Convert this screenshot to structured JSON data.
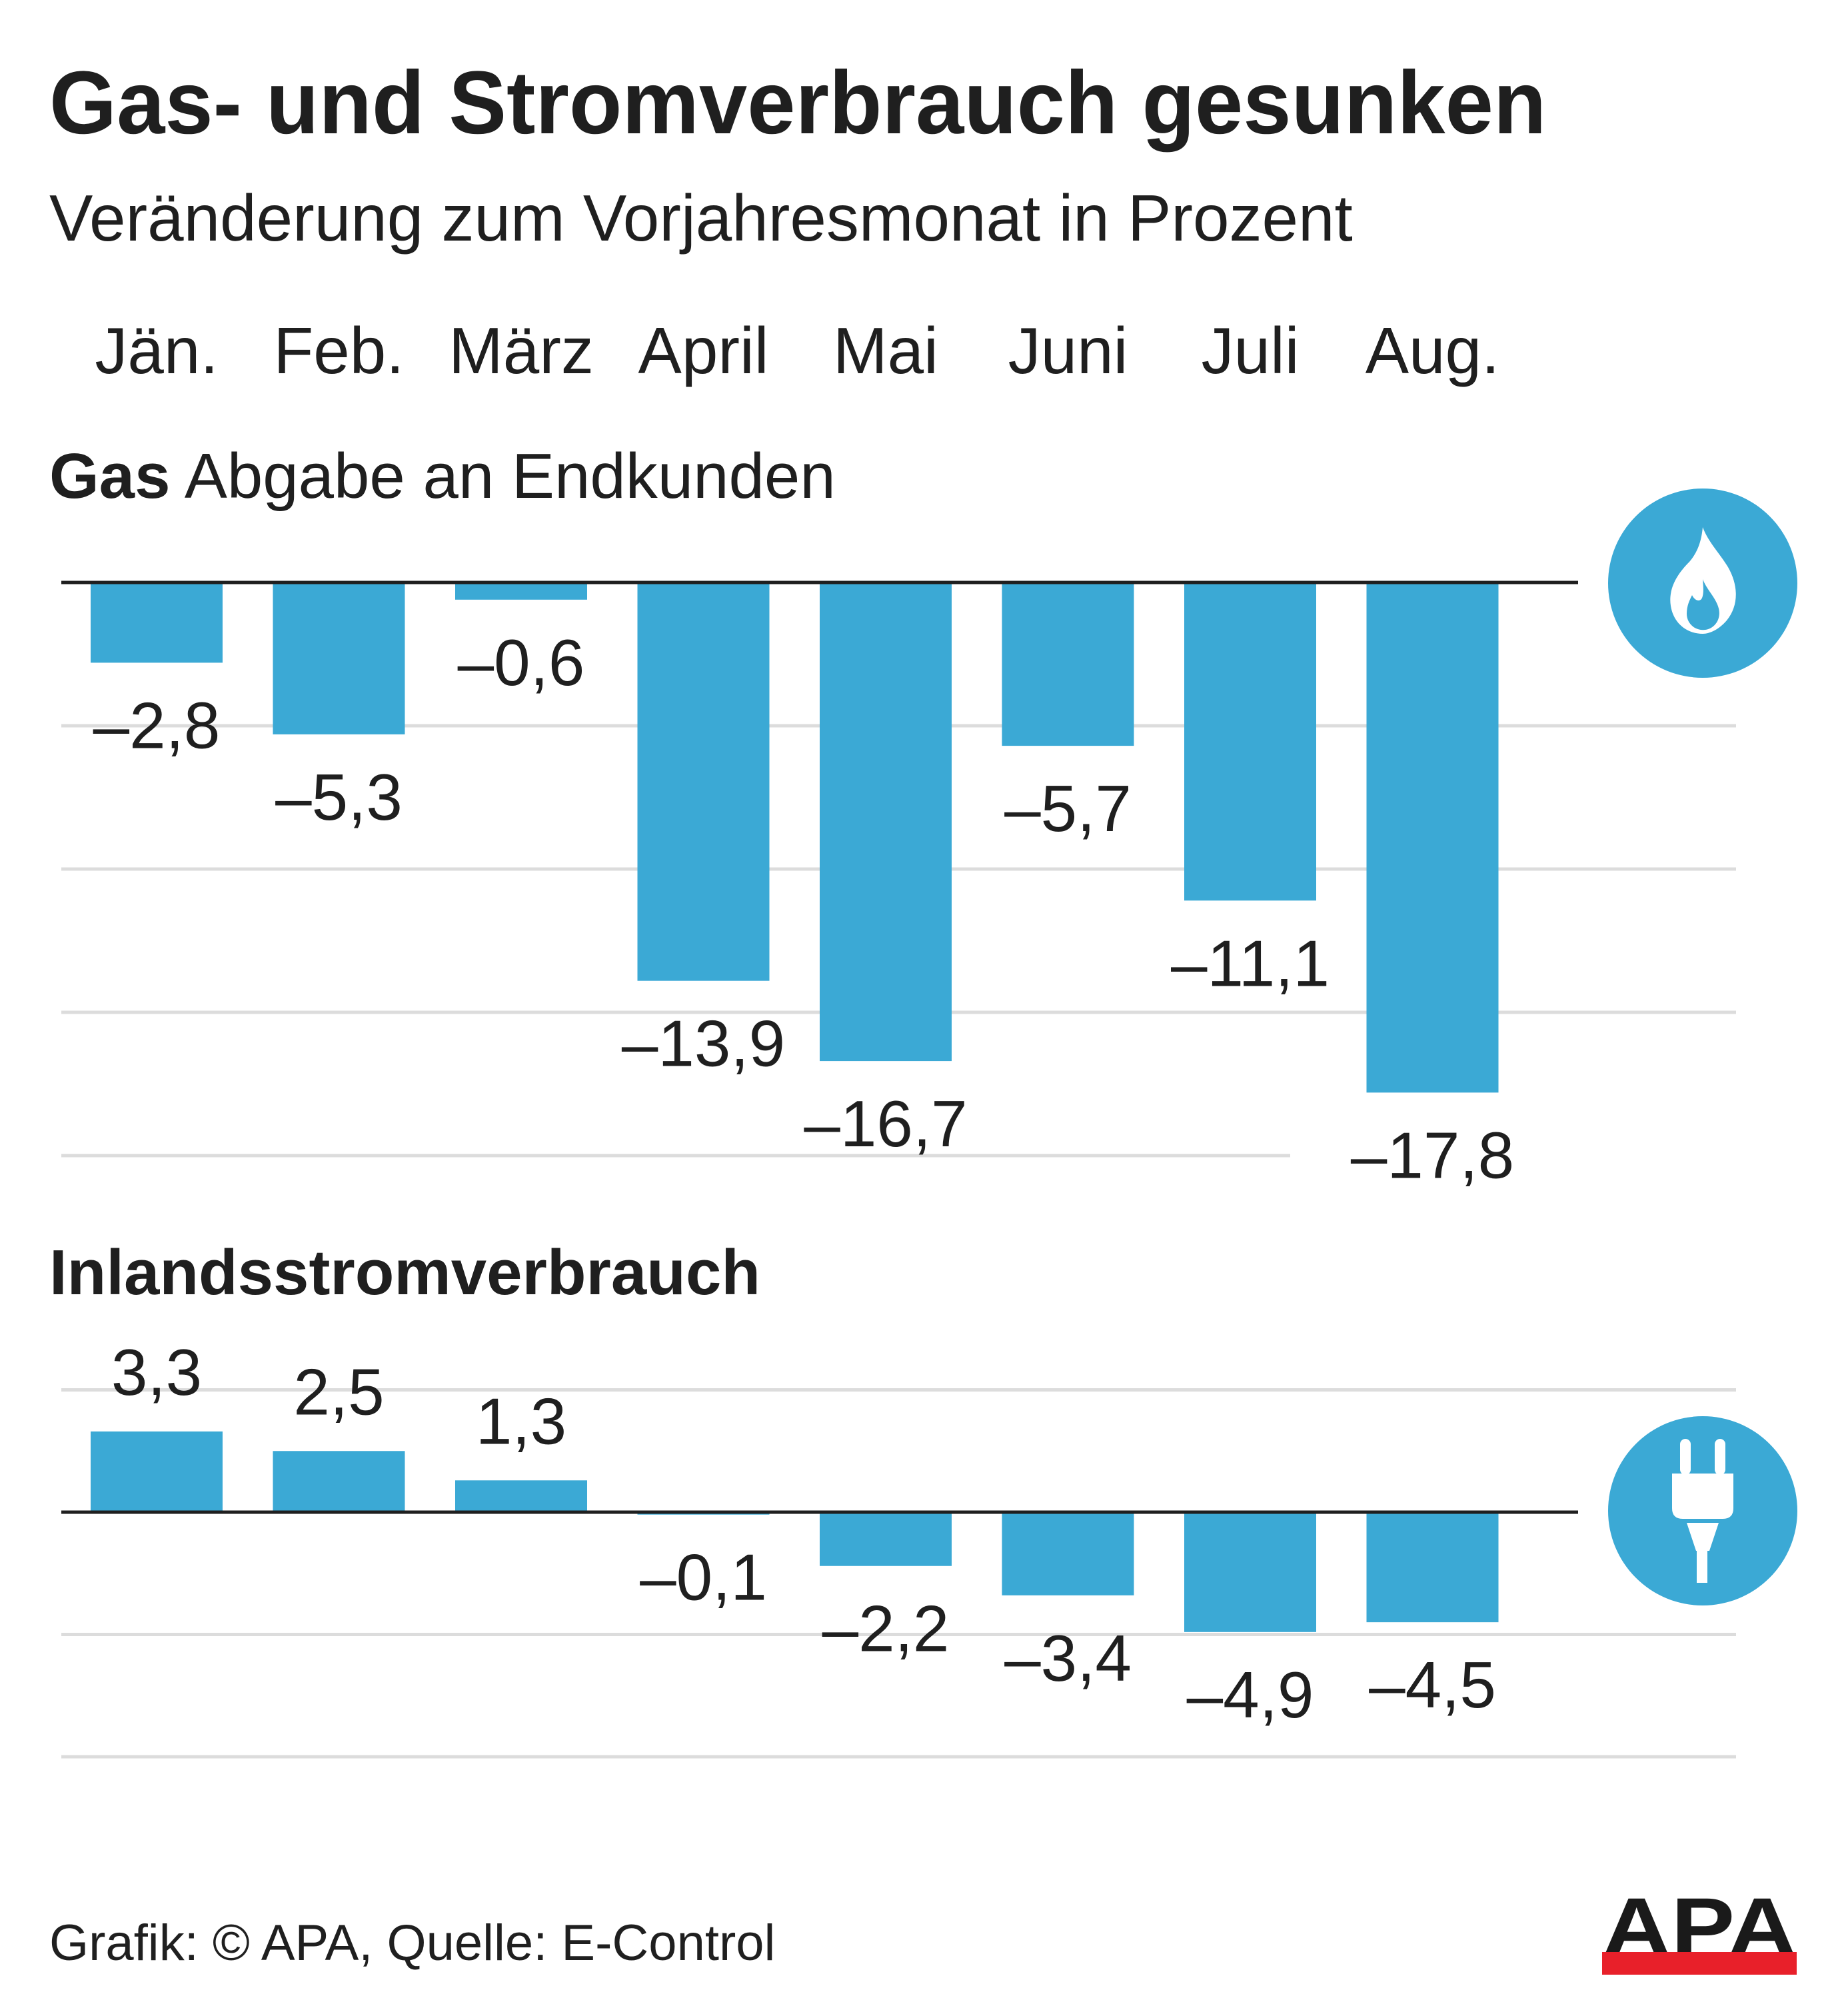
{
  "header": {
    "title": "Gas- und Stromverbrauch gesunken",
    "subtitle": "Veränderung zum Vorjahresmonat in Prozent"
  },
  "colors": {
    "bar": "#3ba9d5",
    "text": "#1f1f1f",
    "axis": "#1f1f1f",
    "grid": "#dcdcdc",
    "logo_red": "#e8202a",
    "logo_black": "#1a1a1a"
  },
  "sections": {
    "gas": {
      "heading_bold": "Gas",
      "heading_rest": "Abgabe an Endkunden",
      "icon": "flame-icon"
    },
    "power": {
      "heading": "Inlandsstromverbrauch",
      "icon": "plug-icon"
    }
  },
  "footer": {
    "credit": "Grafik: © APA, Quelle: E-Control",
    "logo_text": "APA"
  },
  "chart_data": [
    {
      "type": "bar",
      "title": "Gas Abgabe an Endkunden",
      "xlabel": "",
      "ylabel": "Veränderung zum Vorjahresmonat in Prozent",
      "categories": [
        "Jän.",
        "Feb.",
        "März",
        "April",
        "Mai",
        "Juni",
        "Juli",
        "Aug."
      ],
      "values": [
        -2.8,
        -5.3,
        -0.6,
        -13.9,
        -16.7,
        -5.7,
        -11.1,
        -17.8
      ],
      "labels": [
        "–2,8",
        "–5,3",
        "–0,6",
        "–13,9",
        "–16,7",
        "–5,7",
        "–11,1",
        "–17,8"
      ],
      "ylim": [
        -20,
        0
      ],
      "gridlines": [
        -5,
        -10,
        -15,
        -20
      ],
      "grid": true,
      "legend": "none"
    },
    {
      "type": "bar",
      "title": "Inlandsstromverbrauch",
      "xlabel": "",
      "ylabel": "Veränderung zum Vorjahresmonat in Prozent",
      "categories": [
        "Jän.",
        "Feb.",
        "März",
        "April",
        "Mai",
        "Juni",
        "Juli",
        "Aug."
      ],
      "values": [
        3.3,
        2.5,
        1.3,
        -0.1,
        -2.2,
        -3.4,
        -4.9,
        -4.5
      ],
      "labels": [
        "3,3",
        "2,5",
        "1,3",
        "–0,1",
        "–2,2",
        "–3,4",
        "–4,9",
        "–4,5"
      ],
      "ylim": [
        -10,
        5
      ],
      "gridlines": [
        5,
        -5,
        -10
      ],
      "grid": true,
      "legend": "none"
    }
  ]
}
